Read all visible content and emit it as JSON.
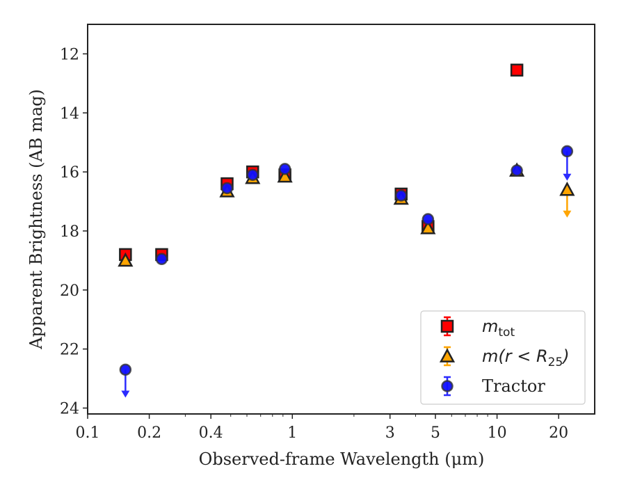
{
  "chart_data": {
    "type": "scatter",
    "xlabel": "Observed-frame Wavelength (μm)",
    "ylabel": "Apparent Brightness (AB mag)",
    "xscale": "log",
    "xlim": [
      0.1,
      30
    ],
    "ylim": [
      24.2,
      11.0
    ],
    "y_inverted": true,
    "x_ticks": [
      0.1,
      0.2,
      0.4,
      1,
      3,
      5,
      10,
      20
    ],
    "x_tick_labels": [
      "0.1",
      "0.2",
      "0.4",
      "1",
      "3",
      "5",
      "10",
      "20"
    ],
    "y_ticks": [
      12,
      14,
      16,
      18,
      20,
      22,
      24
    ],
    "y_tick_labels": [
      "12",
      "14",
      "16",
      "18",
      "20",
      "22",
      "24"
    ],
    "grid": false,
    "legend_position": "lower-right",
    "series": [
      {
        "name": "m_tot",
        "legend_main": "m",
        "legend_sub": "tot",
        "marker": "square",
        "face_color": "#ff0000",
        "edge_color": "#222222",
        "points": [
          {
            "x": 0.153,
            "y": 18.8
          },
          {
            "x": 0.23,
            "y": 18.8
          },
          {
            "x": 0.48,
            "y": 16.4
          },
          {
            "x": 0.64,
            "y": 16.0
          },
          {
            "x": 0.92,
            "y": 16.1
          },
          {
            "x": 3.4,
            "y": 16.75
          },
          {
            "x": 4.6,
            "y": 17.85
          },
          {
            "x": 12.5,
            "y": 12.55
          }
        ]
      },
      {
        "name": "m(r < R_25)",
        "legend_main": "m(r < R",
        "legend_sub": "25",
        "legend_tail": ")",
        "marker": "triangle",
        "face_color": "#ffa500",
        "edge_color": "#222222",
        "points": [
          {
            "x": 0.153,
            "y": 19.0
          },
          {
            "x": 0.48,
            "y": 16.65
          },
          {
            "x": 0.64,
            "y": 16.2
          },
          {
            "x": 0.92,
            "y": 16.15
          },
          {
            "x": 3.4,
            "y": 16.9
          },
          {
            "x": 4.6,
            "y": 17.9
          },
          {
            "x": 12.5,
            "y": 15.95
          },
          {
            "x": 22.0,
            "y": 16.6,
            "upper_limit": true,
            "arrow_to": 17.5
          }
        ]
      },
      {
        "name": "Tractor",
        "legend_main": "Tractor",
        "marker": "circle",
        "face_color": "#1010ff",
        "edge_color": "#333333",
        "points": [
          {
            "x": 0.153,
            "y": 22.7,
            "upper_limit": true,
            "arrow_to": 23.6
          },
          {
            "x": 0.23,
            "y": 18.95
          },
          {
            "x": 0.48,
            "y": 16.55
          },
          {
            "x": 0.64,
            "y": 16.1
          },
          {
            "x": 0.92,
            "y": 15.9
          },
          {
            "x": 3.4,
            "y": 16.8
          },
          {
            "x": 4.6,
            "y": 17.6
          },
          {
            "x": 12.5,
            "y": 15.95
          },
          {
            "x": 22.0,
            "y": 15.3,
            "upper_limit": true,
            "arrow_to": 16.25
          }
        ]
      }
    ]
  }
}
